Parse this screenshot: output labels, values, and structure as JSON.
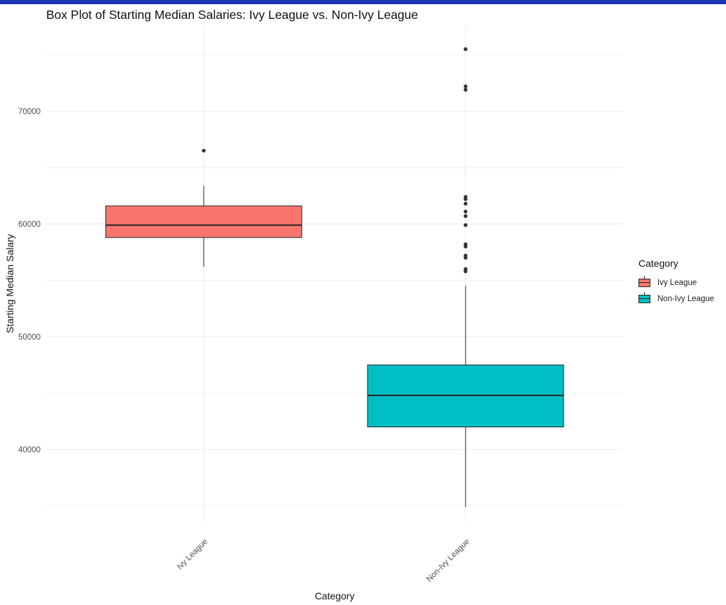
{
  "colors": {
    "top_bar": "#1f35b5",
    "ivy": "#F8766D",
    "nonivy": "#00BFC4",
    "grid": "#ebebeb",
    "box_line": "#222222"
  },
  "chart_data": {
    "type": "box",
    "title": "Box Plot of Starting Median Salaries: Ivy League vs. Non-Ivy League",
    "xlabel": "Category",
    "ylabel": "Starting Median Salary",
    "ylim": [
      33600,
      77500
    ],
    "yticks": [
      40000,
      50000,
      60000,
      70000
    ],
    "grid": true,
    "legend": {
      "title": "Category",
      "position": "right",
      "entries": [
        "Ivy League",
        "Non-Ivy League"
      ]
    },
    "categories": [
      "Ivy League",
      "Non-Ivy League"
    ],
    "series": [
      {
        "name": "Ivy League",
        "whisker_low": 56200,
        "q1": 58800,
        "median": 59900,
        "q3": 61600,
        "whisker_high": 63400,
        "outliers": [
          66500
        ]
      },
      {
        "name": "Non-Ivy League",
        "whisker_low": 34900,
        "q1": 42000,
        "median": 44800,
        "q3": 47500,
        "whisker_high": 54500,
        "outliers": [
          75500,
          72200,
          71900,
          62400,
          62200,
          61800,
          61100,
          60700,
          59900,
          58200,
          58000,
          57200,
          57000,
          56000,
          55800
        ]
      }
    ]
  }
}
